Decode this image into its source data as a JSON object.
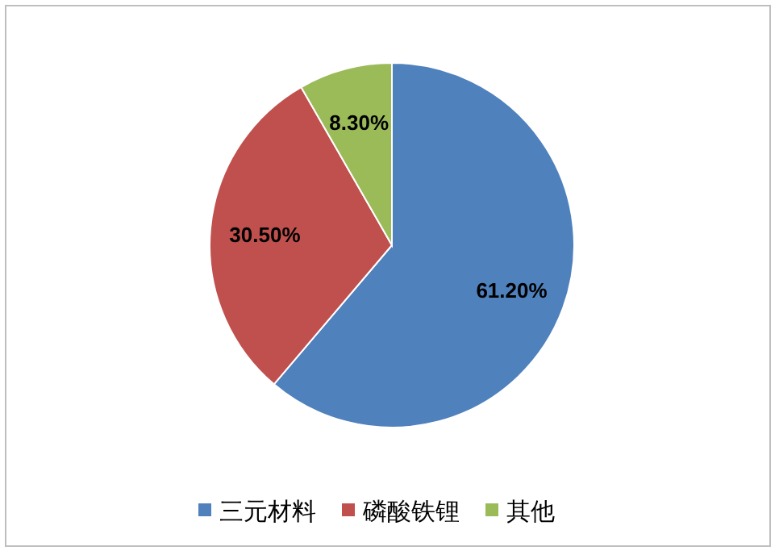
{
  "chart_data": {
    "type": "pie",
    "categories": [
      "三元材料",
      "磷酸铁锂",
      "其他"
    ],
    "values": [
      61.2,
      30.5,
      8.3
    ],
    "colors": [
      "#4f81bd",
      "#c0504d",
      "#9bbb59"
    ],
    "value_labels": [
      "61.20%",
      "30.50%",
      "8.30%"
    ],
    "legend": "bottom"
  }
}
